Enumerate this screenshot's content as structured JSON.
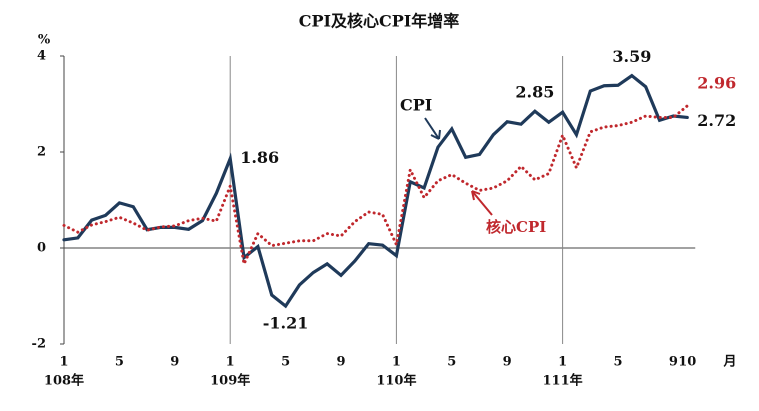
{
  "chart_data": {
    "type": "line",
    "title": "CPI及核心CPI年增率",
    "y_unit": "%",
    "x_unit": "月",
    "categories": [
      "1",
      null,
      null,
      null,
      "5",
      null,
      null,
      null,
      "9",
      null,
      null,
      null,
      "1",
      null,
      null,
      null,
      "5",
      null,
      null,
      null,
      "9",
      null,
      null,
      null,
      "1",
      null,
      null,
      null,
      "5",
      null,
      null,
      null,
      "9",
      null,
      null,
      null,
      "1",
      null,
      null,
      null,
      "5",
      null,
      null,
      null,
      "9",
      "10"
    ],
    "year_labels": [
      "108年",
      "109年",
      "110年",
      "111年"
    ],
    "ylim": [
      -2,
      4
    ],
    "yticks": [
      -2,
      0,
      2,
      4
    ],
    "series": [
      {
        "name": "CPI",
        "color": "#1f3a5a",
        "style": "solid",
        "values": [
          0.17,
          0.21,
          0.58,
          0.68,
          0.94,
          0.86,
          0.38,
          0.43,
          0.43,
          0.39,
          0.57,
          1.14,
          1.86,
          -0.2,
          0.03,
          -0.98,
          -1.21,
          -0.77,
          -0.51,
          -0.33,
          -0.57,
          -0.27,
          0.09,
          0.06,
          -0.16,
          1.38,
          1.25,
          2.1,
          2.48,
          1.89,
          1.95,
          2.36,
          2.63,
          2.58,
          2.85,
          2.62,
          2.83,
          2.36,
          3.27,
          3.38,
          3.39,
          3.59,
          3.36,
          2.66,
          2.75,
          2.72
        ],
        "value_labels": [
          null,
          null,
          null,
          null,
          null,
          null,
          null,
          null,
          null,
          null,
          null,
          null,
          "1.86",
          null,
          null,
          null,
          "-1.21",
          null,
          null,
          null,
          null,
          null,
          null,
          null,
          null,
          null,
          null,
          null,
          null,
          null,
          null,
          null,
          null,
          null,
          "2.85",
          null,
          null,
          null,
          null,
          null,
          null,
          "3.59",
          null,
          null,
          null,
          "2.72"
        ]
      },
      {
        "name": "核心CPI",
        "color": "#c0282d",
        "style": "dotted",
        "values": [
          0.47,
          0.33,
          0.48,
          0.55,
          0.64,
          0.52,
          0.37,
          0.44,
          0.46,
          0.57,
          0.62,
          0.56,
          1.29,
          -0.33,
          0.3,
          0.05,
          0.1,
          0.15,
          0.15,
          0.3,
          0.25,
          0.55,
          0.75,
          0.7,
          0.07,
          1.63,
          1.05,
          1.4,
          1.53,
          1.35,
          1.2,
          1.25,
          1.4,
          1.7,
          1.42,
          1.55,
          2.35,
          1.67,
          2.42,
          2.52,
          2.55,
          2.62,
          2.75,
          2.72,
          2.72,
          2.96
        ],
        "value_labels": [
          null,
          null,
          null,
          null,
          null,
          null,
          null,
          null,
          null,
          null,
          null,
          null,
          null,
          null,
          null,
          null,
          null,
          null,
          null,
          null,
          null,
          null,
          null,
          null,
          null,
          null,
          null,
          null,
          null,
          null,
          null,
          null,
          null,
          null,
          null,
          null,
          null,
          null,
          null,
          null,
          null,
          null,
          null,
          null,
          null,
          "2.96"
        ]
      }
    ]
  }
}
